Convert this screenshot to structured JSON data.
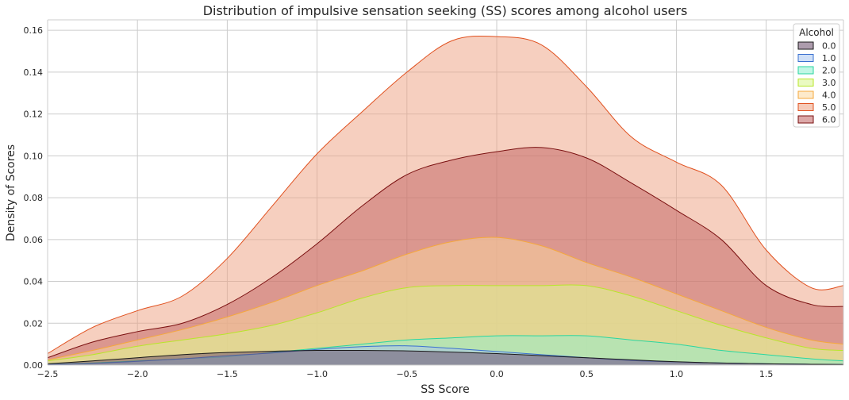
{
  "chart_data": {
    "type": "area",
    "title": "Distribution of impulsive sensation seeking (SS) scores among alcohol users",
    "xlabel": "SS Score",
    "ylabel": "Density of Scores",
    "xlim": [
      -2.5,
      1.93
    ],
    "ylim": [
      0,
      0.165
    ],
    "xticks": [
      -2.5,
      -2.0,
      -1.5,
      -1.0,
      -0.5,
      0.0,
      0.5,
      1.0,
      1.5
    ],
    "xtick_labels": [
      "−2.5",
      "−2.0",
      "−1.5",
      "−1.0",
      "−0.5",
      "0.0",
      "0.5",
      "1.0",
      "1.5"
    ],
    "yticks": [
      0.0,
      0.02,
      0.04,
      0.06,
      0.08,
      0.1,
      0.12,
      0.14,
      0.16
    ],
    "ytick_labels": [
      "0.00",
      "0.02",
      "0.04",
      "0.06",
      "0.08",
      "0.10",
      "0.12",
      "0.14",
      "0.16"
    ],
    "grid": true,
    "legend": {
      "title": "Alcohol",
      "placement": "top-right"
    },
    "x": [
      -2.5,
      -2.25,
      -2.0,
      -1.75,
      -1.5,
      -1.25,
      -1.0,
      -0.75,
      -0.5,
      -0.25,
      0.0,
      0.25,
      0.5,
      0.75,
      1.0,
      1.25,
      1.5,
      1.75,
      1.93
    ],
    "series": [
      {
        "name": "6.0",
        "fill": "#c06060",
        "stroke": "#7a1010",
        "values": [
          0.0035,
          0.011,
          0.016,
          0.02,
          0.029,
          0.042,
          0.058,
          0.076,
          0.091,
          0.098,
          0.102,
          0.104,
          0.099,
          0.087,
          0.074,
          0.06,
          0.038,
          0.029,
          0.028
        ]
      },
      {
        "name": "5.0",
        "fill": "#eea080",
        "stroke": "#e0501e",
        "values": [
          0.0055,
          0.018,
          0.026,
          0.033,
          0.051,
          0.076,
          0.101,
          0.121,
          0.14,
          0.155,
          0.157,
          0.153,
          0.133,
          0.109,
          0.097,
          0.086,
          0.055,
          0.037,
          0.038
        ]
      },
      {
        "name": "4.0",
        "fill": "#fbd8a0",
        "stroke": "#f5a83c",
        "values": [
          0.0025,
          0.007,
          0.012,
          0.017,
          0.023,
          0.03,
          0.038,
          0.045,
          0.053,
          0.059,
          0.061,
          0.057,
          0.049,
          0.042,
          0.034,
          0.026,
          0.018,
          0.012,
          0.01
        ]
      },
      {
        "name": "3.0",
        "fill": "#d9f590",
        "stroke": "#b8e62a",
        "values": [
          0.002,
          0.005,
          0.009,
          0.012,
          0.015,
          0.019,
          0.025,
          0.032,
          0.037,
          0.038,
          0.038,
          0.038,
          0.038,
          0.033,
          0.026,
          0.019,
          0.013,
          0.008,
          0.007
        ]
      },
      {
        "name": "2.0",
        "fill": "#8ef0d0",
        "stroke": "#2ad6a0",
        "values": [
          0.0003,
          0.001,
          0.002,
          0.003,
          0.004,
          0.006,
          0.008,
          0.01,
          0.012,
          0.013,
          0.014,
          0.014,
          0.014,
          0.012,
          0.01,
          0.007,
          0.005,
          0.003,
          0.002
        ]
      },
      {
        "name": "1.0",
        "fill": "#a8c4f0",
        "stroke": "#3a70d0",
        "values": [
          0.0002,
          0.0008,
          0.0018,
          0.003,
          0.0045,
          0.0058,
          0.0075,
          0.0088,
          0.0092,
          0.008,
          0.0065,
          0.005,
          0.0035,
          0.0022,
          0.0015,
          0.001,
          0.0006,
          0.0004,
          0.0003
        ]
      },
      {
        "name": "0.0",
        "fill": "#6a4a6a",
        "stroke": "#1a1a1a",
        "values": [
          0.0006,
          0.002,
          0.0035,
          0.005,
          0.006,
          0.0066,
          0.007,
          0.007,
          0.0068,
          0.0062,
          0.0055,
          0.0045,
          0.0035,
          0.0025,
          0.0016,
          0.001,
          0.0006,
          0.0004,
          0.0003
        ]
      }
    ],
    "legend_order": [
      "0.0",
      "1.0",
      "2.0",
      "3.0",
      "4.0",
      "5.0",
      "6.0"
    ]
  }
}
